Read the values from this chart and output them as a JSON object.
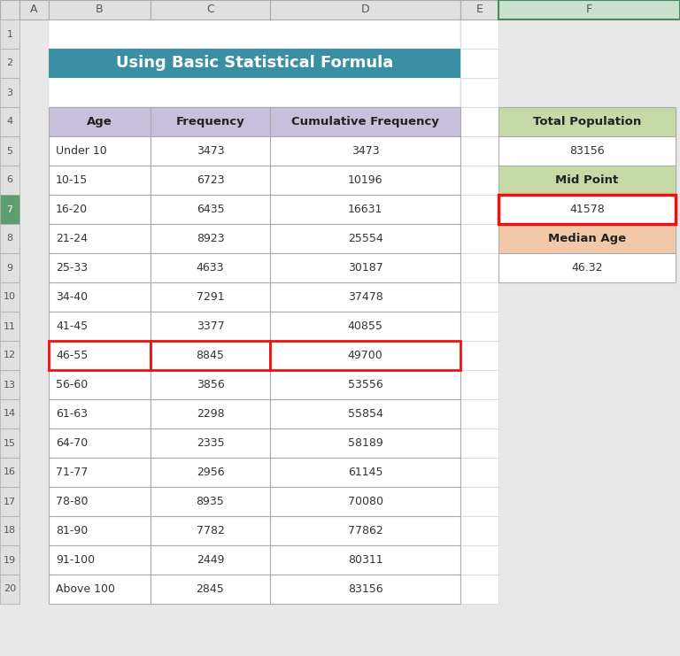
{
  "title": "Using Basic Statistical Formula",
  "title_bg": "#3A8FA3",
  "title_color": "#FFFFFF",
  "headers": [
    "Age",
    "Frequency",
    "Cumulative Frequency"
  ],
  "rows": [
    [
      "Under 10",
      "3473",
      "3473"
    ],
    [
      "10-15",
      "6723",
      "10196"
    ],
    [
      "16-20",
      "6435",
      "16631"
    ],
    [
      "21-24",
      "8923",
      "25554"
    ],
    [
      "25-33",
      "4633",
      "30187"
    ],
    [
      "34-40",
      "7291",
      "37478"
    ],
    [
      "41-45",
      "3377",
      "40855"
    ],
    [
      "46-55",
      "8845",
      "49700"
    ],
    [
      "56-60",
      "3856",
      "53556"
    ],
    [
      "61-63",
      "2298",
      "55854"
    ],
    [
      "64-70",
      "2335",
      "58189"
    ],
    [
      "71-77",
      "2956",
      "61145"
    ],
    [
      "78-80",
      "8935",
      "70080"
    ],
    [
      "81-90",
      "7782",
      "77862"
    ],
    [
      "91-100",
      "2449",
      "80311"
    ],
    [
      "Above 100",
      "2845",
      "83156"
    ]
  ],
  "highlighted_row_idx": 7,
  "side_labels": [
    "Total Population",
    "Mid Point",
    "Median Age"
  ],
  "side_values": [
    "83156",
    "41578",
    "46.32"
  ],
  "side_header_bg": [
    "#C8D9A8",
    "#C8D9A8",
    "#F2C9A8"
  ],
  "col_header_bg": "#C8C0DC",
  "cell_bg": "#FFFFFF",
  "bg_color": "#E8E8E8",
  "grid_color": "#AAAAAA",
  "row_num_bg": "#E0E0E0",
  "row_num_highlight_bg": "#5C9E6E",
  "col_letter_bg": "#E0E0E0",
  "col_F_bg": "#C8E0D0",
  "col_F_border": "#4A8A5A",
  "highlight_border_color": "#EE1111",
  "text_color": "#333333",
  "side_value_midpoint_border": "#EE1111"
}
